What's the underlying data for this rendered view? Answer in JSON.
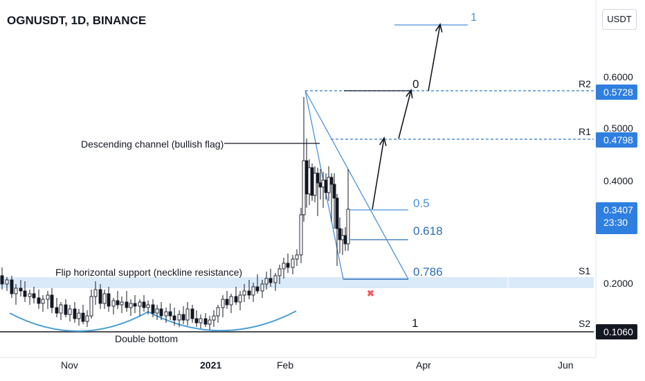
{
  "header": {
    "title": "OGNUSDT, 1D, BINANCE",
    "currency_button": "USDT"
  },
  "colors": {
    "up": "#131722",
    "down": "#131722",
    "fib": "#4a90d9",
    "fib_text": "#2a6cb5",
    "support_band": "#cfe3f7",
    "price_badge": "#2f7fe0",
    "dark_badge": "#131722",
    "neckline_curve": "#4a9fd6",
    "cross": "#f05a5a"
  },
  "chart_data": {
    "type": "candlestick",
    "symbol": "OGNUSDT",
    "interval": "1D",
    "exchange": "BINANCE",
    "y_axis": {
      "ticks": [
        "0.6000",
        "0.5000",
        "0.4000",
        "0.2000"
      ],
      "unit": "USDT"
    },
    "x_axis": {
      "ticks": [
        "Nov",
        "2021",
        "Feb",
        "Apr",
        "Jun"
      ]
    },
    "price_labels": {
      "r2": "0.5728",
      "r1": "0.4798",
      "last": "0.3407",
      "countdown": "23:30",
      "s2": "0.1060"
    },
    "level_names": {
      "r2": "R2",
      "r1": "R1",
      "s1": "S1",
      "s2": "S2"
    },
    "fib_levels": [
      "0",
      "0.5",
      "0.618",
      "0.786",
      "1"
    ],
    "target_label": "1",
    "annotations": {
      "flag": "Descending channel (bullish flag)",
      "neckline": "Flip horizontal support (neckline resistance)",
      "double_bottom": "Double bottom"
    },
    "key_levels": {
      "r2": 0.5728,
      "r1": 0.4798,
      "s1": 0.2,
      "s2": 0.106,
      "last": 0.3407
    }
  }
}
